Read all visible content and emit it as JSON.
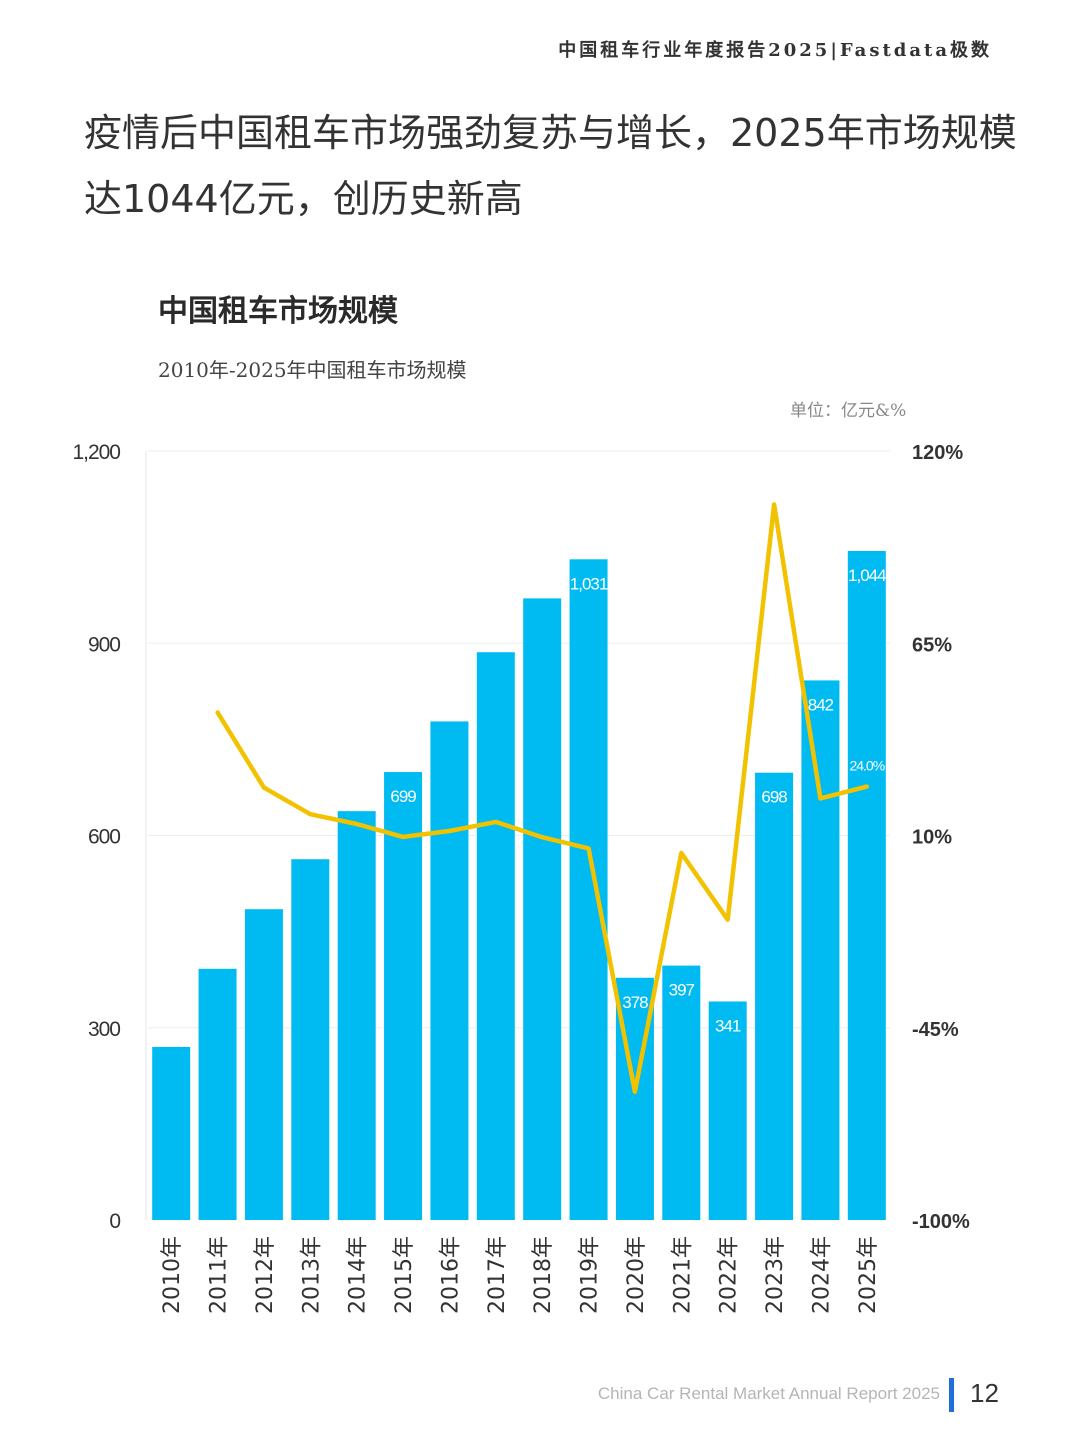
{
  "header": {
    "report_title": "中国租车行业年度报告2025|Fastdata极数"
  },
  "headline": "疫情后中国租车市场强劲复苏与增长，2025年市场规模达1044亿元，创历史新高",
  "chart_title": "中国租车市场规模",
  "chart_data": {
    "type": "bar",
    "title": "2010年-2025年中国租车市场规模",
    "unit": "单位：亿元&%",
    "categories": [
      "2010年",
      "2011年",
      "2012年",
      "2013年",
      "2014年",
      "2015年",
      "2016年",
      "2017年",
      "2018年",
      "2019年",
      "2020年",
      "2021年",
      "2022年",
      "2023年",
      "2024年",
      "2025年"
    ],
    "series": [
      {
        "type": "bar",
        "axis": "left",
        "values": [
          270,
          392,
          485,
          563,
          638,
          699,
          778,
          886,
          970,
          1031,
          378,
          397,
          341,
          698,
          842,
          1044
        ]
      },
      {
        "type": "line",
        "axis": "right",
        "values": [
          null,
          45.2,
          23.7,
          16.1,
          13.3,
          9.6,
          11.3,
          13.9,
          9.5,
          6.3,
          -63.3,
          5.0,
          -14.1,
          104.7,
          20.6,
          24.0
        ]
      }
    ],
    "bar_labels": {
      "5": "699",
      "9": "1,031",
      "10": "378",
      "11": "397",
      "12": "341",
      "13": "698",
      "14": "842",
      "15": "1,044"
    },
    "line_labels": {
      "15": "24.0%"
    },
    "y_left": {
      "range": [
        0,
        1200
      ],
      "ticks": [
        "0",
        "300",
        "600",
        "900",
        "1,200"
      ]
    },
    "y_right": {
      "range": [
        -100,
        120
      ],
      "ticks": [
        "-100%",
        "-45%",
        "10%",
        "65%",
        "120%"
      ]
    },
    "colors": {
      "bar": "#00bbf2",
      "line": "#f2c200",
      "grid": "#eeeeee"
    },
    "grid": true
  },
  "footer": {
    "text": "China Car Rental Market Annual Report 2025",
    "page": "12"
  }
}
